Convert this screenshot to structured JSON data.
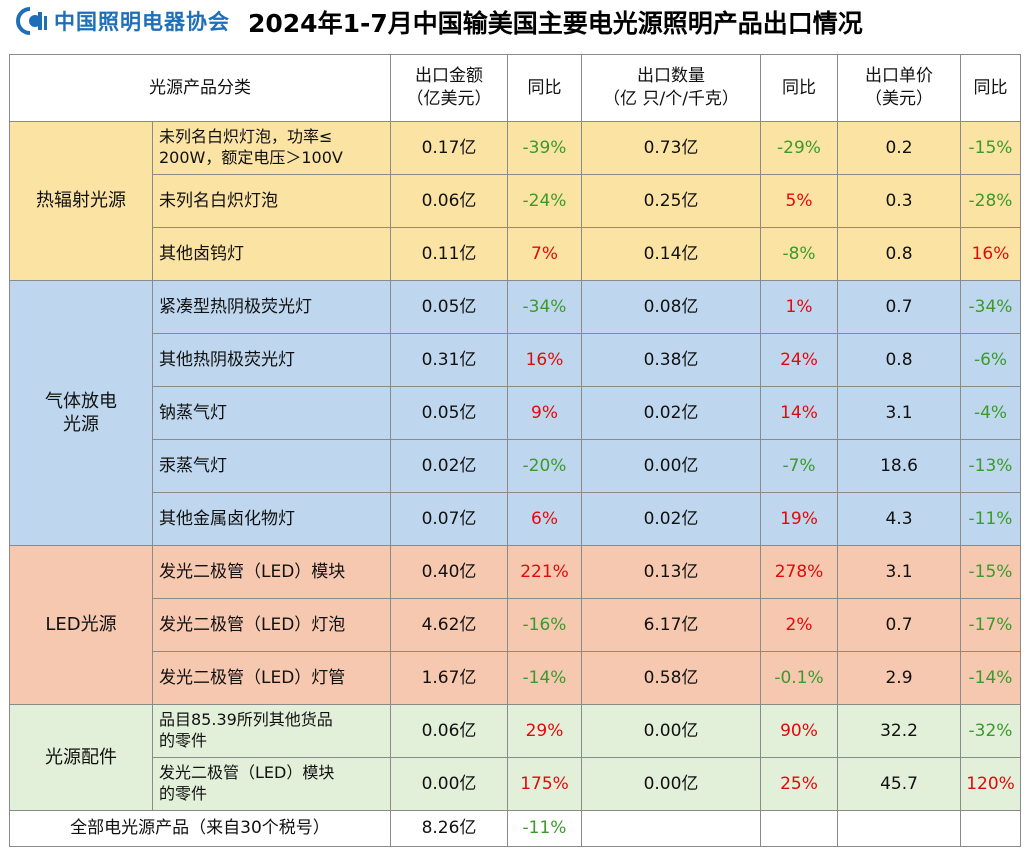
{
  "header": {
    "logo_text": "中国照明电器协会",
    "logo_icon": "cali-logo-icon",
    "title": "2024年1-7月中国输美国主要电光源照明产品出口情况"
  },
  "columns": {
    "category": "光源产品分类",
    "value_l1": "出口金额",
    "value_l2": "（亿美元）",
    "yoy": "同比",
    "qty_l1": "出口数量",
    "qty_l2": "（亿 只/个/千克）",
    "price_l1": "出口单价",
    "price_l2": "（美元）"
  },
  "colors": {
    "thermal": "#fbe3a4",
    "gas": "#bfd7ee",
    "led": "#f6c8b0",
    "accessory": "#e2efd9",
    "increase": "#e10a0a",
    "decrease": "#3a9a2c"
  },
  "groups": [
    {
      "category_l1": "热辐射光源",
      "category_l2": "",
      "rows": [
        {
          "name_l1": "未列名白炽灯泡，功率≤",
          "name_l2": "200W，额定电压＞100V",
          "value": "0.17亿",
          "value_yoy": "-39%",
          "qty": "0.73亿",
          "qty_yoy": "-29%",
          "price": "0.2",
          "price_yoy": "-15%"
        },
        {
          "name_l1": "未列名白炽灯泡",
          "name_l2": "",
          "value": "0.06亿",
          "value_yoy": "-24%",
          "qty": "0.25亿",
          "qty_yoy": "5%",
          "price": "0.3",
          "price_yoy": "-28%"
        },
        {
          "name_l1": "其他卤钨灯",
          "name_l2": "",
          "value": "0.11亿",
          "value_yoy": "7%",
          "qty": "0.14亿",
          "qty_yoy": "-8%",
          "price": "0.8",
          "price_yoy": "16%"
        }
      ]
    },
    {
      "category_l1": "气体放电",
      "category_l2": "光源",
      "rows": [
        {
          "name_l1": "紧凑型热阴极荧光灯",
          "name_l2": "",
          "value": "0.05亿",
          "value_yoy": "-34%",
          "qty": "0.08亿",
          "qty_yoy": "1%",
          "price": "0.7",
          "price_yoy": "-34%"
        },
        {
          "name_l1": "其他热阴极荧光灯",
          "name_l2": "",
          "value": "0.31亿",
          "value_yoy": "16%",
          "qty": "0.38亿",
          "qty_yoy": "24%",
          "price": "0.8",
          "price_yoy": "-6%"
        },
        {
          "name_l1": "钠蒸气灯",
          "name_l2": "",
          "value": "0.05亿",
          "value_yoy": "9%",
          "qty": "0.02亿",
          "qty_yoy": "14%",
          "price": "3.1",
          "price_yoy": "-4%"
        },
        {
          "name_l1": "汞蒸气灯",
          "name_l2": "",
          "value": "0.02亿",
          "value_yoy": "-20%",
          "qty": "0.00亿",
          "qty_yoy": "-7%",
          "price": "18.6",
          "price_yoy": "-13%"
        },
        {
          "name_l1": "其他金属卤化物灯",
          "name_l2": "",
          "value": "0.07亿",
          "value_yoy": "6%",
          "qty": "0.02亿",
          "qty_yoy": "19%",
          "price": "4.3",
          "price_yoy": "-11%"
        }
      ]
    },
    {
      "category_l1": "LED光源",
      "category_l2": "",
      "rows": [
        {
          "name_l1": "发光二极管（LED）模块",
          "name_l2": "",
          "value": "0.40亿",
          "value_yoy": "221%",
          "qty": "0.13亿",
          "qty_yoy": "278%",
          "price": "3.1",
          "price_yoy": "-15%"
        },
        {
          "name_l1": "发光二极管（LED）灯泡",
          "name_l2": "",
          "value": "4.62亿",
          "value_yoy": "-16%",
          "qty": "6.17亿",
          "qty_yoy": "2%",
          "price": "0.7",
          "price_yoy": "-17%"
        },
        {
          "name_l1": "发光二极管（LED）灯管",
          "name_l2": "",
          "value": "1.67亿",
          "value_yoy": "-14%",
          "qty": "0.58亿",
          "qty_yoy": "-0.1%",
          "price": "2.9",
          "price_yoy": "-14%"
        }
      ]
    },
    {
      "category_l1": "光源配件",
      "category_l2": "",
      "rows": [
        {
          "name_l1": "品目85.39所列其他货品",
          "name_l2": "的零件",
          "value": "0.06亿",
          "value_yoy": "29%",
          "qty": "0.00亿",
          "qty_yoy": "90%",
          "price": "32.2",
          "price_yoy": "-32%"
        },
        {
          "name_l1": "发光二极管（LED）模块",
          "name_l2": "的零件",
          "value": "0.00亿",
          "value_yoy": "175%",
          "qty": "0.00亿",
          "qty_yoy": "25%",
          "price": "45.7",
          "price_yoy": "120%"
        }
      ]
    }
  ],
  "total": {
    "label": "全部电光源产品（来自30个税号）",
    "value": "8.26亿",
    "value_yoy": "-11%"
  }
}
